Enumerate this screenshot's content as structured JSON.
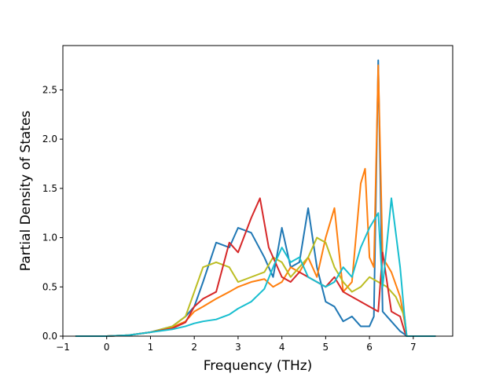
{
  "chart_data": {
    "type": "line",
    "title": "",
    "xlabel": "Frequency (THz)",
    "ylabel": "Partial Density of States",
    "xlim": [
      -1.0,
      7.9
    ],
    "ylim": [
      0.0,
      2.95
    ],
    "xticks": [
      -1,
      0,
      1,
      2,
      3,
      4,
      5,
      6,
      7
    ],
    "yticks": [
      0.0,
      0.5,
      1.0,
      1.5,
      2.0,
      2.5
    ],
    "xtick_labels": [
      "−1",
      "0",
      "1",
      "2",
      "3",
      "4",
      "5",
      "6",
      "7"
    ],
    "ytick_labels": [
      "0.0",
      "0.5",
      "1.0",
      "1.5",
      "2.0",
      "2.5"
    ],
    "grid": false,
    "legend": "none",
    "series": [
      {
        "color": "#1f77b4",
        "x": [
          -0.7,
          0.0,
          0.5,
          1.0,
          1.5,
          1.8,
          2.0,
          2.2,
          2.5,
          2.8,
          3.0,
          3.3,
          3.6,
          3.8,
          4.0,
          4.2,
          4.4,
          4.6,
          4.8,
          5.0,
          5.2,
          5.4,
          5.6,
          5.8,
          6.0,
          6.1,
          6.2,
          6.3,
          6.5,
          6.7,
          6.8,
          6.85,
          7.5
        ],
        "y": [
          0,
          0,
          0.01,
          0.04,
          0.1,
          0.2,
          0.3,
          0.55,
          0.95,
          0.9,
          1.1,
          1.05,
          0.8,
          0.6,
          1.1,
          0.7,
          0.75,
          1.3,
          0.7,
          0.35,
          0.3,
          0.15,
          0.2,
          0.1,
          0.1,
          0.2,
          2.8,
          0.25,
          0.15,
          0.05,
          0.02,
          0,
          0
        ]
      },
      {
        "color": "#ff7f0e",
        "x": [
          -0.7,
          0.0,
          0.5,
          1.0,
          1.5,
          1.8,
          2.0,
          2.2,
          2.5,
          2.8,
          3.0,
          3.3,
          3.6,
          3.8,
          4.0,
          4.2,
          4.4,
          4.6,
          4.8,
          5.0,
          5.2,
          5.4,
          5.6,
          5.8,
          5.9,
          6.0,
          6.1,
          6.2,
          6.3,
          6.5,
          6.7,
          6.8,
          6.85,
          7.5
        ],
        "y": [
          0,
          0,
          0.01,
          0.04,
          0.09,
          0.15,
          0.25,
          0.3,
          0.38,
          0.45,
          0.5,
          0.55,
          0.58,
          0.5,
          0.55,
          0.7,
          0.65,
          0.8,
          0.6,
          1.0,
          1.3,
          0.45,
          0.55,
          1.55,
          1.7,
          0.8,
          0.7,
          2.75,
          0.8,
          0.65,
          0.4,
          0.15,
          0,
          0
        ]
      },
      {
        "color": "#bcbd22",
        "x": [
          -0.7,
          0.0,
          0.5,
          1.0,
          1.5,
          1.8,
          2.0,
          2.2,
          2.5,
          2.8,
          3.0,
          3.3,
          3.6,
          3.8,
          4.0,
          4.2,
          4.4,
          4.6,
          4.8,
          5.0,
          5.2,
          5.4,
          5.6,
          5.8,
          6.0,
          6.2,
          6.4,
          6.6,
          6.8,
          6.85,
          7.5
        ],
        "y": [
          0,
          0,
          0.01,
          0.04,
          0.1,
          0.2,
          0.45,
          0.7,
          0.75,
          0.7,
          0.55,
          0.6,
          0.65,
          0.8,
          0.75,
          0.6,
          0.7,
          0.8,
          1.0,
          0.95,
          0.7,
          0.55,
          0.45,
          0.5,
          0.6,
          0.55,
          0.5,
          0.4,
          0.2,
          0,
          0
        ]
      },
      {
        "color": "#d62728",
        "x": [
          -0.7,
          0.0,
          0.5,
          1.0,
          1.5,
          1.8,
          2.0,
          2.2,
          2.5,
          2.8,
          3.0,
          3.3,
          3.5,
          3.7,
          4.0,
          4.2,
          4.4,
          4.6,
          4.8,
          5.0,
          5.2,
          5.4,
          5.6,
          5.8,
          6.0,
          6.2,
          6.3,
          6.5,
          6.7,
          6.8,
          6.85,
          7.5
        ],
        "y": [
          0,
          0,
          0.01,
          0.04,
          0.08,
          0.14,
          0.3,
          0.38,
          0.45,
          0.95,
          0.85,
          1.2,
          1.4,
          0.9,
          0.6,
          0.55,
          0.65,
          0.6,
          0.55,
          0.5,
          0.6,
          0.45,
          0.4,
          0.35,
          0.3,
          0.25,
          0.85,
          0.25,
          0.2,
          0.05,
          0,
          0
        ]
      },
      {
        "color": "#17becf",
        "x": [
          -0.7,
          0.0,
          0.5,
          1.0,
          1.5,
          1.8,
          2.0,
          2.2,
          2.5,
          2.8,
          3.0,
          3.3,
          3.6,
          3.8,
          4.0,
          4.2,
          4.4,
          4.6,
          4.8,
          5.0,
          5.2,
          5.4,
          5.6,
          5.8,
          6.0,
          6.2,
          6.3,
          6.5,
          6.6,
          6.7,
          6.8,
          6.85,
          7.5
        ],
        "y": [
          0,
          0,
          0.01,
          0.04,
          0.07,
          0.1,
          0.13,
          0.15,
          0.17,
          0.22,
          0.28,
          0.35,
          0.48,
          0.7,
          0.9,
          0.75,
          0.8,
          0.6,
          0.55,
          0.5,
          0.55,
          0.7,
          0.6,
          0.9,
          1.1,
          1.25,
          0.5,
          1.4,
          1.05,
          0.7,
          0.2,
          0,
          0
        ]
      }
    ]
  }
}
